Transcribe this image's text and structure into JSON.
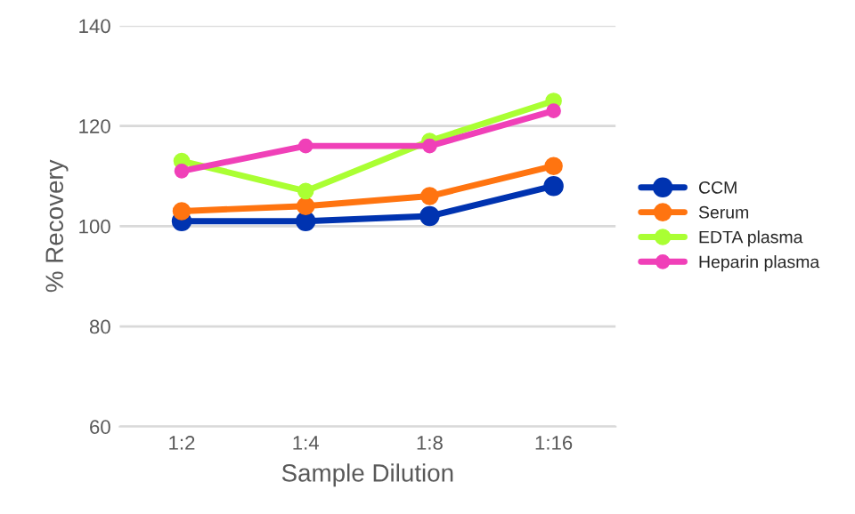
{
  "chart_data": {
    "type": "line",
    "xlabel": "Sample Dilution",
    "ylabel": "% Recovery",
    "categories": [
      "1:2",
      "1:4",
      "1:8",
      "1:16"
    ],
    "series": [
      {
        "name": "CCM",
        "color": "#0033b0",
        "values": [
          101,
          101,
          102,
          108
        ]
      },
      {
        "name": "Serum",
        "color": "#ff7410",
        "values": [
          103,
          104,
          106,
          112
        ]
      },
      {
        "name": "EDTA plasma",
        "color": "#aaff33",
        "values": [
          113,
          107,
          117,
          125
        ]
      },
      {
        "name": "Heparin plasma",
        "color": "#f040b8",
        "values": [
          111,
          116,
          116,
          123
        ]
      }
    ],
    "ylim": [
      60,
      140
    ],
    "yticks": [
      60,
      80,
      100,
      120,
      140
    ],
    "grid": "y",
    "legend": "right",
    "marker": "circle",
    "line_style": "solid"
  }
}
